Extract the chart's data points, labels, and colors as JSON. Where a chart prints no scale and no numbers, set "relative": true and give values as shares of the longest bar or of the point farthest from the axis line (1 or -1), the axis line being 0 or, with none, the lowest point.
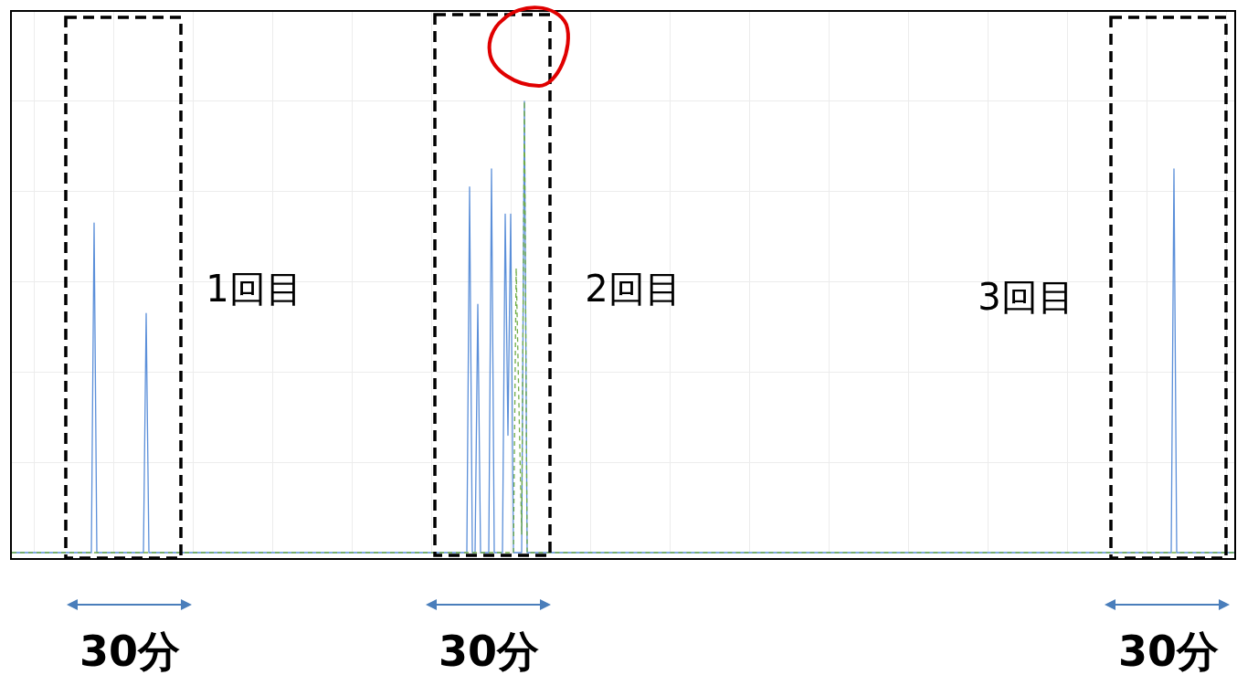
{
  "chart_data": {
    "type": "line",
    "relative": true,
    "grid": true,
    "categories": [
      null,
      null,
      null,
      null,
      null,
      null,
      null,
      null,
      null,
      null,
      null,
      null,
      null,
      null,
      null,
      null,
      null,
      null,
      null,
      null,
      null,
      null,
      null,
      null,
      null,
      null,
      null,
      null,
      null,
      null,
      null,
      null,
      null,
      null,
      null,
      null,
      null,
      null,
      null,
      null,
      null,
      null,
      null,
      null,
      null,
      null,
      null,
      null,
      null,
      null,
      null,
      null,
      null,
      null,
      null,
      null,
      null,
      null,
      null,
      null,
      null,
      null,
      null,
      null,
      null,
      null,
      null,
      null,
      null,
      null,
      null,
      null,
      null,
      null,
      null,
      null,
      null,
      null,
      null,
      null,
      null,
      null,
      null,
      null,
      null,
      null,
      null,
      null,
      null,
      null,
      null,
      null,
      null,
      null,
      null,
      null,
      null,
      null,
      null,
      null,
      null,
      null,
      null,
      null,
      null,
      null,
      null,
      null,
      null,
      null,
      null,
      null,
      null,
      null,
      null,
      null,
      null,
      null,
      null,
      null,
      null,
      null,
      null,
      null,
      null,
      null,
      null,
      null,
      null,
      null,
      null,
      null,
      null,
      null,
      null,
      null,
      null,
      null,
      null,
      null,
      null,
      null,
      null,
      null,
      null,
      null,
      null,
      null,
      null,
      null,
      null,
      null,
      null,
      null,
      null,
      null,
      null,
      null,
      null,
      null,
      null,
      null,
      null,
      null,
      null,
      null,
      null,
      null,
      null,
      null,
      null,
      null,
      null,
      null,
      null,
      null,
      null,
      null,
      null,
      null,
      null,
      null,
      null,
      null,
      null,
      null,
      null,
      null,
      null,
      null,
      null,
      null,
      null,
      null,
      null,
      null,
      null,
      null,
      null,
      null,
      null,
      null,
      null,
      null,
      null,
      null,
      null,
      null,
      null,
      null,
      null,
      null,
      null,
      null,
      null,
      null,
      null,
      null,
      null,
      null,
      null,
      null,
      null,
      null,
      null,
      null,
      null,
      null,
      null,
      null,
      null,
      null,
      null,
      null,
      null,
      null,
      null,
      null,
      null,
      null,
      null,
      null,
      null,
      null,
      null,
      null,
      null,
      null,
      null,
      null,
      null,
      null,
      null,
      null,
      null,
      null,
      null,
      null,
      null,
      null,
      null,
      null,
      null,
      null,
      null,
      null,
      null,
      null,
      null,
      null,
      null,
      null,
      null,
      null,
      null,
      null,
      null,
      null,
      null,
      null,
      null,
      null,
      null,
      null,
      null,
      null,
      null,
      null,
      null,
      null,
      null,
      null,
      null,
      null,
      null,
      null,
      null,
      null,
      null,
      null,
      null,
      null,
      null,
      null,
      null,
      null,
      null,
      null,
      null,
      null,
      null,
      null,
      null,
      null,
      null,
      null,
      null,
      null,
      null,
      null,
      null,
      null,
      null,
      null,
      null,
      null,
      null,
      null,
      null,
      null,
      null,
      null,
      null,
      null,
      null,
      null,
      null,
      null,
      null,
      null,
      null,
      null,
      null,
      null,
      null,
      null,
      null,
      null,
      null,
      null,
      null,
      null,
      null,
      null,
      null,
      null,
      null,
      null,
      null,
      null,
      null,
      null,
      null,
      null,
      null,
      null,
      null,
      null,
      null,
      null,
      null,
      null,
      null,
      null,
      null,
      null,
      null,
      null,
      null,
      null,
      null,
      null,
      null,
      null,
      null,
      null,
      null,
      null,
      null,
      null,
      null,
      null,
      null,
      null,
      null,
      null,
      null,
      null,
      null,
      null,
      null,
      null,
      null,
      null,
      null,
      null,
      null,
      null,
      null,
      null,
      null,
      null,
      null,
      null,
      null,
      null,
      null,
      null,
      null,
      null,
      null,
      null,
      null,
      null,
      null,
      null,
      null,
      null,
      null,
      null,
      null,
      null,
      null,
      null,
      null,
      null,
      null,
      null,
      null,
      null,
      null,
      null,
      null,
      null,
      null,
      null,
      null
    ],
    "series": [
      {
        "color": "#5b8fd9",
        "values": [
          0,
          0,
          0,
          0,
          0,
          0,
          0,
          0,
          0,
          0,
          0,
          0,
          0,
          0,
          0,
          0,
          0,
          0,
          0,
          0,
          0,
          0,
          0,
          0,
          0,
          0,
          0,
          0,
          0,
          0,
          0.73,
          0,
          0,
          0,
          0,
          0,
          0,
          0,
          0,
          0,
          0,
          0,
          0,
          0,
          0,
          0,
          0,
          0,
          0,
          0.53,
          0,
          0,
          0,
          0,
          0,
          0,
          0,
          0,
          0,
          0,
          0,
          0,
          0,
          0,
          0,
          0,
          0,
          0,
          0,
          0,
          0,
          0,
          0,
          0,
          0,
          0,
          0,
          0,
          0,
          0,
          0,
          0,
          0,
          0,
          0,
          0,
          0,
          0,
          0,
          0,
          0,
          0,
          0,
          0,
          0,
          0,
          0,
          0,
          0,
          0,
          0,
          0,
          0,
          0,
          0,
          0,
          0,
          0,
          0,
          0,
          0,
          0,
          0,
          0,
          0,
          0,
          0,
          0,
          0,
          0,
          0,
          0,
          0,
          0,
          0,
          0,
          0,
          0,
          0,
          0,
          0,
          0,
          0,
          0,
          0,
          0,
          0,
          0,
          0,
          0,
          0,
          0,
          0,
          0,
          0,
          0,
          0,
          0,
          0,
          0,
          0,
          0,
          0,
          0,
          0,
          0,
          0,
          0,
          0,
          0,
          0,
          0,
          0,
          0,
          0,
          0,
          0,
          0.81,
          0,
          0,
          0.55,
          0,
          0,
          0,
          0,
          0.85,
          0,
          0,
          0,
          0,
          0.75,
          0.26,
          0.75,
          0,
          0,
          0,
          0,
          1.0,
          0,
          0,
          0,
          0,
          0,
          0,
          0,
          0,
          0,
          0,
          0,
          0,
          0,
          0,
          0,
          0,
          0,
          0,
          0,
          0,
          0,
          0,
          0,
          0,
          0,
          0,
          0,
          0,
          0,
          0,
          0,
          0,
          0,
          0,
          0,
          0,
          0,
          0,
          0,
          0,
          0,
          0,
          0,
          0,
          0,
          0,
          0,
          0,
          0,
          0,
          0,
          0,
          0,
          0,
          0,
          0,
          0,
          0,
          0,
          0,
          0,
          0,
          0,
          0,
          0,
          0,
          0,
          0,
          0,
          0,
          0,
          0,
          0,
          0,
          0,
          0,
          0,
          0,
          0,
          0,
          0,
          0,
          0,
          0,
          0,
          0,
          0,
          0,
          0,
          0,
          0,
          0,
          0,
          0,
          0,
          0,
          0,
          0,
          0,
          0,
          0,
          0,
          0,
          0,
          0,
          0,
          0,
          0,
          0,
          0,
          0,
          0,
          0,
          0,
          0,
          0,
          0,
          0,
          0,
          0,
          0,
          0,
          0,
          0,
          0,
          0,
          0,
          0,
          0,
          0,
          0,
          0,
          0,
          0,
          0,
          0,
          0,
          0,
          0,
          0,
          0,
          0,
          0,
          0,
          0,
          0,
          0,
          0,
          0,
          0,
          0,
          0,
          0,
          0,
          0,
          0,
          0,
          0,
          0,
          0,
          0,
          0,
          0,
          0,
          0,
          0,
          0,
          0,
          0,
          0,
          0,
          0,
          0,
          0,
          0,
          0,
          0,
          0,
          0,
          0,
          0,
          0,
          0,
          0,
          0,
          0,
          0,
          0,
          0,
          0,
          0,
          0,
          0,
          0,
          0,
          0,
          0,
          0,
          0,
          0,
          0,
          0,
          0,
          0,
          0,
          0,
          0,
          0,
          0,
          0,
          0,
          0,
          0,
          0,
          0,
          0,
          0,
          0,
          0,
          0,
          0,
          0,
          0,
          0,
          0,
          0,
          0,
          0,
          0,
          0,
          0,
          0,
          0,
          0,
          0,
          0,
          0.85,
          0,
          0,
          0,
          0,
          0,
          0,
          0,
          0,
          0,
          0,
          0,
          0,
          0,
          0,
          0,
          0,
          0,
          0,
          0,
          0,
          0,
          0
        ]
      },
      {
        "color": "#70ad47",
        "line_style": "dashed",
        "values": [
          0,
          0,
          0,
          0,
          0,
          0,
          0,
          0,
          0,
          0,
          0,
          0,
          0,
          0,
          0,
          0,
          0,
          0,
          0,
          0,
          0,
          0,
          0,
          0,
          0,
          0,
          0,
          0,
          0,
          0,
          0,
          0,
          0,
          0,
          0,
          0,
          0,
          0,
          0,
          0,
          0,
          0,
          0,
          0,
          0,
          0,
          0,
          0,
          0,
          0,
          0,
          0,
          0,
          0,
          0,
          0,
          0,
          0,
          0,
          0,
          0,
          0,
          0,
          0,
          0,
          0,
          0,
          0,
          0,
          0,
          0,
          0,
          0,
          0,
          0,
          0,
          0,
          0,
          0,
          0,
          0,
          0,
          0,
          0,
          0,
          0,
          0,
          0,
          0,
          0,
          0,
          0,
          0,
          0,
          0,
          0,
          0,
          0,
          0,
          0,
          0,
          0,
          0,
          0,
          0,
          0,
          0,
          0,
          0,
          0,
          0,
          0,
          0,
          0,
          0,
          0,
          0,
          0,
          0,
          0,
          0,
          0,
          0,
          0,
          0,
          0,
          0,
          0,
          0,
          0,
          0,
          0,
          0,
          0,
          0,
          0,
          0,
          0,
          0,
          0,
          0,
          0,
          0,
          0,
          0,
          0,
          0,
          0,
          0,
          0,
          0,
          0,
          0,
          0,
          0,
          0,
          0,
          0,
          0,
          0,
          0,
          0,
          0,
          0,
          0,
          0,
          0,
          0,
          0,
          0,
          0,
          0,
          0,
          0,
          0,
          0,
          0,
          0,
          0,
          0,
          0,
          0,
          0,
          0,
          0.63,
          0.33,
          0.04,
          1.0,
          0,
          0,
          0,
          0,
          0,
          0,
          0,
          0,
          0,
          0,
          0,
          0,
          0,
          0,
          0,
          0,
          0,
          0,
          0,
          0,
          0,
          0,
          0,
          0,
          0,
          0,
          0,
          0,
          0,
          0,
          0,
          0,
          0,
          0,
          0,
          0,
          0,
          0,
          0,
          0,
          0,
          0,
          0,
          0,
          0,
          0,
          0,
          0,
          0,
          0,
          0,
          0,
          0,
          0,
          0,
          0,
          0,
          0,
          0,
          0,
          0,
          0,
          0,
          0,
          0,
          0,
          0,
          0,
          0,
          0,
          0,
          0,
          0,
          0,
          0,
          0,
          0,
          0,
          0,
          0,
          0,
          0,
          0,
          0,
          0,
          0,
          0,
          0,
          0,
          0,
          0,
          0,
          0,
          0,
          0,
          0,
          0,
          0,
          0,
          0,
          0,
          0,
          0,
          0,
          0,
          0,
          0,
          0,
          0,
          0,
          0,
          0,
          0,
          0,
          0,
          0,
          0,
          0,
          0,
          0,
          0,
          0,
          0,
          0,
          0,
          0,
          0,
          0,
          0,
          0,
          0,
          0,
          0,
          0,
          0,
          0,
          0,
          0,
          0,
          0,
          0,
          0,
          0,
          0,
          0,
          0,
          0,
          0,
          0,
          0,
          0,
          0,
          0,
          0,
          0,
          0,
          0,
          0,
          0,
          0,
          0,
          0,
          0,
          0,
          0,
          0,
          0,
          0,
          0,
          0,
          0,
          0,
          0,
          0,
          0,
          0,
          0,
          0,
          0,
          0,
          0,
          0,
          0,
          0,
          0,
          0,
          0,
          0,
          0,
          0,
          0,
          0,
          0,
          0,
          0,
          0,
          0,
          0,
          0,
          0,
          0,
          0,
          0,
          0,
          0,
          0,
          0,
          0,
          0,
          0,
          0,
          0,
          0,
          0,
          0,
          0,
          0,
          0,
          0,
          0,
          0,
          0,
          0,
          0,
          0,
          0,
          0,
          0,
          0,
          0,
          0,
          0,
          0,
          0,
          0,
          0,
          0,
          0,
          0,
          0,
          0,
          0,
          0,
          0,
          0,
          0,
          0,
          0,
          0,
          0,
          0,
          0,
          0,
          0,
          0,
          0,
          0,
          0,
          0
        ]
      }
    ],
    "annotations": [
      "1回目",
      "2回目",
      "3回目",
      "30分",
      "30分",
      "30分"
    ]
  }
}
